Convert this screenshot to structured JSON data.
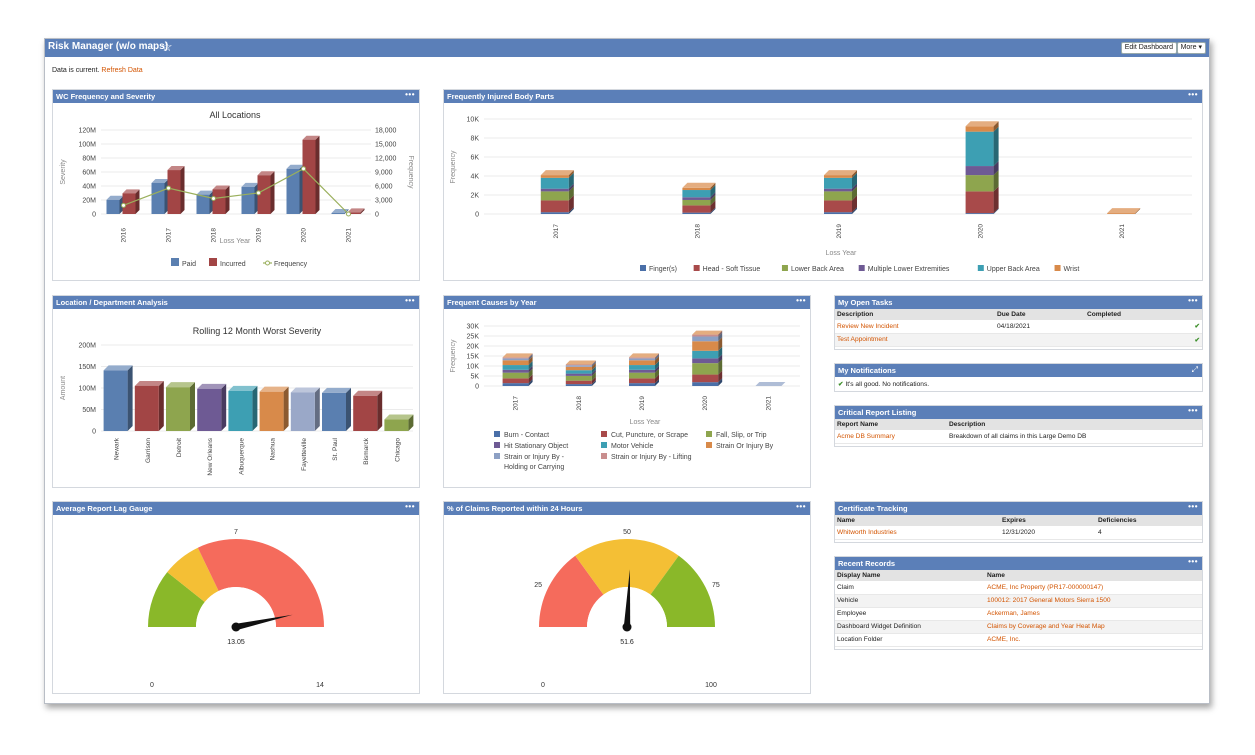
{
  "window": {
    "title": "Risk Manager (w/o maps)",
    "edit_label": "Edit Dashboard",
    "more_label": "More ▾",
    "status_text": "Data is current.",
    "refresh_label": "Refresh Data"
  },
  "panels": {
    "wc": {
      "title": "WC Frequency and Severity",
      "menu": "•••"
    },
    "body": {
      "title": "Frequently Injured Body Parts",
      "menu": "•••"
    },
    "loc": {
      "title": "Location / Department Analysis",
      "menu": "•••"
    },
    "causes": {
      "title": "Frequent Causes by Year",
      "menu": "•••"
    },
    "lag": {
      "title": "Average Report Lag Gauge",
      "menu": "•••"
    },
    "pct": {
      "title": "% of Claims Reported within 24 Hours",
      "menu": "•••"
    }
  },
  "tasks": {
    "title": "My Open Tasks",
    "menu": "•••",
    "headers": [
      "Description",
      "Due Date",
      "Completed"
    ],
    "rows": [
      {
        "description": "Review New Incident",
        "due": "04/18/2021",
        "completed": "✔"
      },
      {
        "description": "Test Appointment",
        "due": "",
        "completed": "✔"
      }
    ]
  },
  "notifications": {
    "title": "My Notifications",
    "expand": "⤢",
    "message": "It's all good. No notifications.",
    "check": "✔"
  },
  "critical": {
    "title": "Critical Report Listing",
    "menu": "•••",
    "headers": [
      "Report Name",
      "Description"
    ],
    "rows": [
      {
        "name": "Acme DB Summary",
        "description": "Breakdown of all claims in this Large Demo DB"
      }
    ]
  },
  "certificates": {
    "title": "Certificate Tracking",
    "menu": "•••",
    "headers": [
      "Name",
      "Expires",
      "Deficiencies"
    ],
    "rows": [
      {
        "name": "Whitworth Industries",
        "expires": "12/31/2020",
        "deficiencies": "4"
      }
    ]
  },
  "recent": {
    "title": "Recent Records",
    "menu": "•••",
    "headers": [
      "Display Name",
      "Name"
    ],
    "rows": [
      {
        "display": "Claim",
        "name": "ACME, Inc Property (PR17-000000147)"
      },
      {
        "display": "Vehicle",
        "name": "100012: 2017 General Motors Sierra 1500"
      },
      {
        "display": "Employee",
        "name": "Ackerman, James"
      },
      {
        "display": "Dashboard Widget Definition",
        "name": "Claims by Coverage and Year Heat Map"
      },
      {
        "display": "Location Folder",
        "name": "ACME, Inc."
      }
    ]
  },
  "chart_data": [
    {
      "id": "wc",
      "type": "bar",
      "title": "All Locations",
      "xlabel": "Loss Year",
      "ylabel": "Severity",
      "y2label": "Frequency",
      "categories": [
        "2016",
        "2017",
        "2018",
        "2019",
        "2020",
        "2021"
      ],
      "ylim": [
        0,
        130000000
      ],
      "yticks": [
        "0",
        "20M",
        "40M",
        "60M",
        "80M",
        "100M",
        "120M"
      ],
      "y2lim": [
        0,
        19500
      ],
      "y2ticks": [
        "0",
        "3,000",
        "6,000",
        "9,000",
        "12,000",
        "15,000",
        "18,000"
      ],
      "series": [
        {
          "name": "Paid",
          "kind": "bar",
          "color": "#5a7fb0",
          "values": [
            22000000,
            48000000,
            30000000,
            42000000,
            70000000,
            1500000
          ]
        },
        {
          "name": "Incurred",
          "kind": "bar",
          "color": "#a24545",
          "values": [
            32000000,
            68000000,
            38000000,
            60000000,
            115000000,
            2500000
          ]
        },
        {
          "name": "Frequency",
          "kind": "line",
          "color": "#9aaf5c",
          "values": [
            2000,
            6000,
            3600,
            4900,
            10500,
            0
          ]
        }
      ],
      "legend": "bottom"
    },
    {
      "id": "body",
      "type": "bar",
      "stacked": true,
      "xlabel": "Loss Year",
      "ylabel": "Frequency",
      "categories": [
        "2017",
        "2018",
        "2019",
        "2020",
        "2021"
      ],
      "ylim": [
        0,
        10500
      ],
      "yticks": [
        "0",
        "2K",
        "4K",
        "6K",
        "8K",
        "10K"
      ],
      "series": [
        {
          "name": "Finger(s)",
          "color": "#4a6fa8",
          "values": [
            200,
            150,
            200,
            100,
            0
          ]
        },
        {
          "name": "Head - Soft Tissue",
          "color": "#a84a4a",
          "values": [
            1300,
            800,
            1300,
            2400,
            0
          ]
        },
        {
          "name": "Lower Back Area",
          "color": "#8ea54e",
          "values": [
            1000,
            600,
            1000,
            1800,
            0
          ]
        },
        {
          "name": "Multiple Lower Extremities",
          "color": "#6e5a94",
          "values": [
            300,
            300,
            300,
            1000,
            0
          ]
        },
        {
          "name": "Upper Back Area",
          "color": "#3d9fb3",
          "values": [
            1200,
            800,
            1200,
            3800,
            0
          ]
        },
        {
          "name": "Wrist",
          "color": "#d88a4a",
          "values": [
            300,
            250,
            300,
            600,
            100
          ]
        }
      ],
      "legend": "bottom"
    },
    {
      "id": "loc",
      "type": "bar",
      "title": "Rolling 12 Month Worst Severity",
      "ylabel": "Amount",
      "categories": [
        "Newark",
        "Garrison",
        "Detroit",
        "New Orleans",
        "Albuquerque",
        "Nashua",
        "Fayetteville",
        "St. Paul",
        "Bismarck",
        "Chicago"
      ],
      "ylim": [
        0,
        210000000
      ],
      "yticks": [
        "0",
        "50M",
        "100M",
        "150M",
        "200M"
      ],
      "colors": [
        "#5a7fb0",
        "#a24545",
        "#8ea54e",
        "#6e5a94",
        "#3d9fb3",
        "#d88a4a",
        "#9aa8c8",
        "#5a7fb0",
        "#a24545",
        "#8ea54e"
      ],
      "values": [
        148000000,
        110000000,
        107000000,
        103000000,
        98000000,
        96000000,
        94000000,
        93000000,
        86000000,
        28000000
      ]
    },
    {
      "id": "causes",
      "type": "bar",
      "stacked": true,
      "xlabel": "Loss Year",
      "ylabel": "Frequency",
      "categories": [
        "2017",
        "2018",
        "2019",
        "2020",
        "2021"
      ],
      "ylim": [
        0,
        31500
      ],
      "yticks": [
        "0",
        "5K",
        "10K",
        "15K",
        "20K",
        "25K",
        "30K"
      ],
      "series": [
        {
          "name": "Burn - Contact",
          "color": "#4a6fa8",
          "values": [
            1500,
            1000,
            1500,
            2000,
            0
          ]
        },
        {
          "name": "Cut, Puncture, or Scrape",
          "color": "#a84a4a",
          "values": [
            2500,
            1800,
            2500,
            4000,
            0
          ]
        },
        {
          "name": "Fall, Slip, or Trip",
          "color": "#8ea54e",
          "values": [
            3000,
            2500,
            3000,
            6000,
            0
          ]
        },
        {
          "name": "Hit Stationary Object",
          "color": "#6e5a94",
          "values": [
            1500,
            1200,
            1500,
            2500,
            0
          ]
        },
        {
          "name": "Motor Vehicle",
          "color": "#3d9fb3",
          "values": [
            2500,
            1800,
            2500,
            4000,
            0
          ]
        },
        {
          "name": "Strain Or Injury By",
          "color": "#d88a4a",
          "values": [
            2500,
            1800,
            2500,
            5000,
            0
          ]
        },
        {
          "name": "Strain or Injury By - Holding or Carrying",
          "color": "#8da0c4",
          "values": [
            1000,
            800,
            1000,
            2500,
            0
          ]
        },
        {
          "name": "Strain or Injury By - Lifting",
          "color": "#c98e8e",
          "values": [
            500,
            400,
            500,
            1000,
            0
          ]
        }
      ],
      "legend": "bottom"
    },
    {
      "id": "lag",
      "type": "gauge",
      "min": 0,
      "max": 14,
      "mid_label": "7",
      "value": 13.05,
      "value_label": "13.05",
      "bands": [
        {
          "from": 0,
          "to": 3,
          "color": "#8ab829"
        },
        {
          "from": 3,
          "to": 5,
          "color": "#f4bf35"
        },
        {
          "from": 5,
          "to": 14,
          "color": "#f56b5c"
        }
      ],
      "min_label": "0",
      "max_label": "14"
    },
    {
      "id": "pct",
      "type": "gauge",
      "min": 0,
      "max": 100,
      "mid_label": "50",
      "value": 51.6,
      "value_label": "51.6",
      "bands": [
        {
          "from": 0,
          "to": 30,
          "color": "#f56b5c"
        },
        {
          "from": 30,
          "to": 70,
          "color": "#f4bf35"
        },
        {
          "from": 70,
          "to": 100,
          "color": "#8ab829"
        }
      ],
      "min_label": "0",
      "max_label": "100",
      "q1_label": "25",
      "q3_label": "75"
    }
  ]
}
